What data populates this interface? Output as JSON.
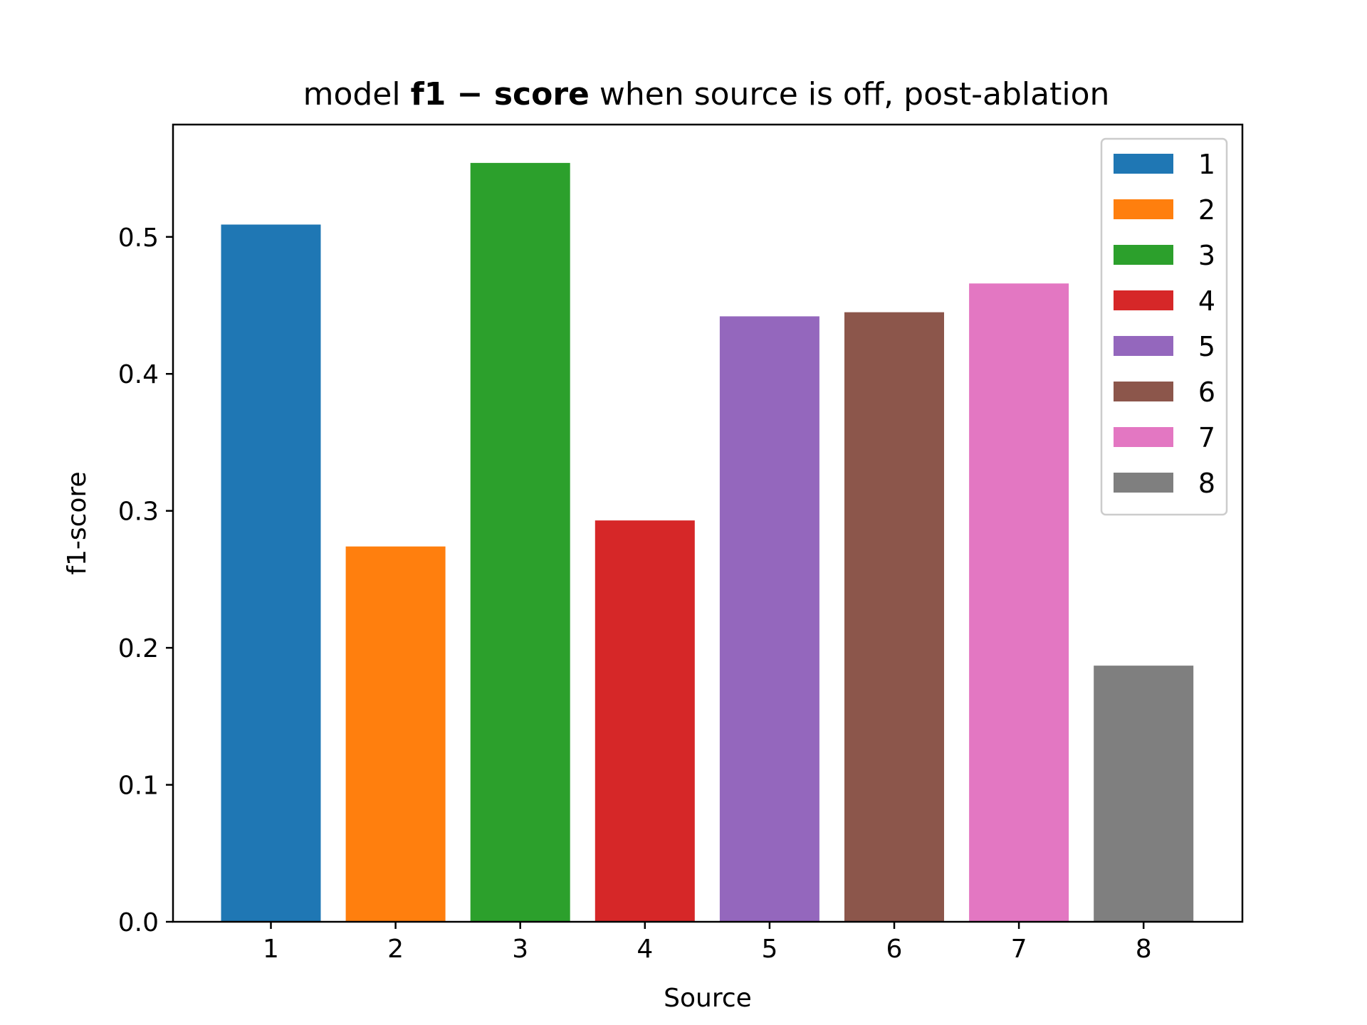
{
  "chart_data": {
    "type": "bar",
    "title": {
      "prefix": "model ",
      "bold": "f1 − score",
      "suffix": " when source is off, post-ablation"
    },
    "xlabel": "Source",
    "ylabel": "f1-score",
    "categories": [
      "1",
      "2",
      "3",
      "4",
      "5",
      "6",
      "7",
      "8"
    ],
    "values": [
      0.509,
      0.274,
      0.554,
      0.293,
      0.442,
      0.445,
      0.466,
      0.187
    ],
    "colors": [
      "#1f77b4",
      "#ff7f0e",
      "#2ca02c",
      "#d62728",
      "#9467bd",
      "#8c564b",
      "#e377c2",
      "#7f7f7f"
    ],
    "ylim": [
      0,
      0.582
    ],
    "yticks": [
      "0.0",
      "0.1",
      "0.2",
      "0.3",
      "0.4",
      "0.5"
    ],
    "legend": {
      "placement": "top-right",
      "entries": [
        "1",
        "2",
        "3",
        "4",
        "5",
        "6",
        "7",
        "8"
      ]
    },
    "grid": false
  }
}
